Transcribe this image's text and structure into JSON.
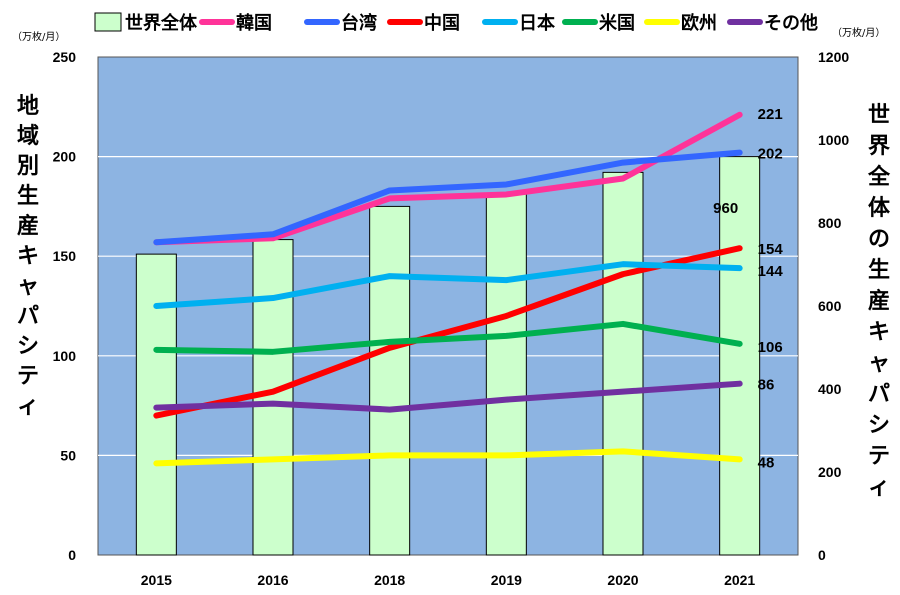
{
  "chart_data": {
    "type": "bar+line",
    "categories": [
      "2015",
      "2016",
      "2018",
      "2019",
      "2020",
      "2021"
    ],
    "bar_series": {
      "name": "世界全体",
      "axis": "right",
      "values": [
        725,
        760,
        840,
        870,
        922,
        960
      ],
      "color": "#ccffcc",
      "data_labels": {
        "2021": "960"
      }
    },
    "line_series": [
      {
        "name": "韓国",
        "color": "#ff3399",
        "values": [
          157,
          159,
          179,
          181,
          189,
          221
        ],
        "end_label": "221"
      },
      {
        "name": "台湾",
        "color": "#3366ff",
        "values": [
          157,
          161,
          183,
          186,
          197,
          202
        ],
        "end_label": "202"
      },
      {
        "name": "中国",
        "color": "#ff0000",
        "values": [
          70,
          82,
          104,
          120,
          141,
          154
        ],
        "end_label": "154"
      },
      {
        "name": "日本",
        "color": "#00b0f0",
        "values": [
          125,
          129,
          140,
          138,
          146,
          144
        ],
        "end_label": "144"
      },
      {
        "name": "米国",
        "color": "#00b050",
        "values": [
          103,
          102,
          107,
          110,
          116,
          106
        ],
        "end_label": "106"
      },
      {
        "name": "欧州",
        "color": "#ffff00",
        "values": [
          46,
          48,
          50,
          50,
          52,
          48
        ],
        "end_label": "48"
      },
      {
        "name": "その他",
        "color": "#7030a0",
        "values": [
          74,
          76,
          73,
          78,
          82,
          86
        ],
        "end_label": "86"
      }
    ],
    "left_axis": {
      "label": "地域別生産キャパシティ",
      "unit": "（万枚/月）",
      "ylim": [
        0,
        250
      ],
      "ticks": [
        "0",
        "50",
        "100",
        "150",
        "200",
        "250"
      ]
    },
    "right_axis": {
      "label": "世界全体の生産キャパシティ",
      "unit": "（万枚/月）",
      "ylim": [
        0,
        1200
      ],
      "ticks": [
        "0",
        "200",
        "400",
        "600",
        "800",
        "1000",
        "1200"
      ]
    },
    "plot_background": "#8db4e2",
    "gridlines": true,
    "legend_position": "top"
  }
}
